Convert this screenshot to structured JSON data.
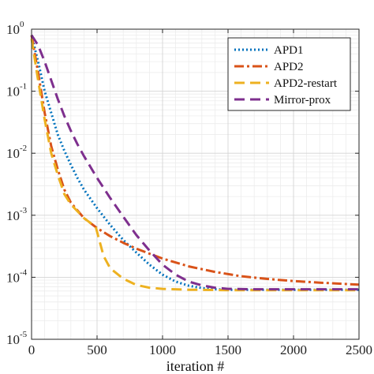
{
  "chart_data": {
    "type": "line",
    "title": "",
    "xlabel": "iteration #",
    "ylabel": "",
    "xlim": [
      0,
      2500
    ],
    "ylim": [
      1e-05,
      1
    ],
    "yscale": "log",
    "grid": true,
    "legend_position": "top-right",
    "x_ticks": [
      0,
      500,
      1000,
      1500,
      2000,
      2500
    ],
    "x_tick_labels": [
      "0",
      "500",
      "1000",
      "1500",
      "2000",
      "2500"
    ],
    "y_ticks": [
      {
        "value": 1,
        "base": "10",
        "exponent": "0"
      },
      {
        "value": 0.1,
        "base": "10",
        "exponent": "-1"
      },
      {
        "value": 0.01,
        "base": "10",
        "exponent": "-2"
      },
      {
        "value": 0.001,
        "base": "10",
        "exponent": "-3"
      },
      {
        "value": 0.0001,
        "base": "10",
        "exponent": "-4"
      },
      {
        "value": 1e-05,
        "base": "10",
        "exponent": "-5"
      }
    ],
    "series": [
      {
        "name": "APD1",
        "color": "#0072BD",
        "dash": "dotted",
        "x": [
          0,
          50,
          100,
          150,
          200,
          250,
          300,
          350,
          400,
          500,
          600,
          700,
          800,
          900,
          1000,
          1100,
          1200,
          1300,
          1400,
          1500,
          1700,
          2000,
          2500
        ],
        "y": [
          0.8,
          0.3,
          0.1,
          0.045,
          0.02,
          0.011,
          0.0065,
          0.004,
          0.0026,
          0.0013,
          0.0007,
          0.0004,
          0.00025,
          0.00016,
          0.00011,
          8.5e-05,
          7.3e-05,
          6.7e-05,
          6.4e-05,
          6.3e-05,
          6.3e-05,
          6.3e-05,
          6.3e-05
        ]
      },
      {
        "name": "APD2",
        "color": "#D95319",
        "dash": "dashdot",
        "x": [
          0,
          50,
          100,
          150,
          200,
          250,
          300,
          400,
          500,
          600,
          700,
          800,
          900,
          1000,
          1200,
          1400,
          1600,
          1800,
          2000,
          2200,
          2500
        ],
        "y": [
          0.8,
          0.2,
          0.045,
          0.013,
          0.0055,
          0.0026,
          0.0016,
          0.0009,
          0.00062,
          0.00046,
          0.00036,
          0.00029,
          0.00024,
          0.0002,
          0.00015,
          0.000122,
          0.000104,
          9.4e-05,
          8.7e-05,
          8.2e-05,
          7.6e-05
        ]
      },
      {
        "name": "APD2-restart",
        "color": "#EDB120",
        "dash": "dashed",
        "x": [
          0,
          50,
          100,
          150,
          200,
          250,
          300,
          400,
          490,
          510,
          550,
          600,
          700,
          800,
          900,
          1000,
          1200,
          1500,
          2000,
          2500
        ],
        "y": [
          0.7,
          0.15,
          0.035,
          0.01,
          0.0045,
          0.0022,
          0.0015,
          0.0009,
          0.00065,
          0.00045,
          0.00022,
          0.00014,
          9.5e-05,
          7.5e-05,
          6.8e-05,
          6.5e-05,
          6.3e-05,
          6.2e-05,
          6.2e-05,
          6.2e-05
        ]
      },
      {
        "name": "Mirror-prox",
        "color": "#7E2F8E",
        "dash": "dashed",
        "x": [
          0,
          50,
          100,
          150,
          200,
          250,
          300,
          350,
          400,
          500,
          600,
          700,
          800,
          900,
          1000,
          1100,
          1200,
          1300,
          1400,
          1500,
          1700,
          2000,
          2500
        ],
        "y": [
          0.8,
          0.55,
          0.3,
          0.15,
          0.075,
          0.04,
          0.023,
          0.014,
          0.009,
          0.004,
          0.0019,
          0.00095,
          0.00048,
          0.00027,
          0.00016,
          0.00011,
          8.5e-05,
          7.4e-05,
          6.8e-05,
          6.5e-05,
          6.4e-05,
          6.4e-05,
          6.4e-05
        ]
      }
    ]
  }
}
